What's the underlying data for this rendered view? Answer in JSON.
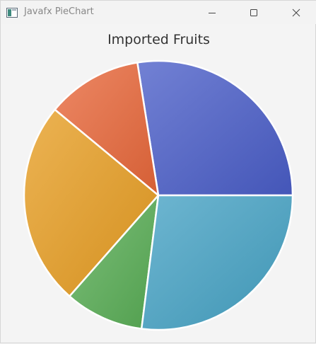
{
  "window": {
    "title": "Javafx PieChart",
    "app_icon": "java-window-icon",
    "controls": {
      "minimize_icon": "minimize-icon",
      "maximize_icon": "maximize-icon",
      "close_icon": "close-icon"
    }
  },
  "chart_data": {
    "type": "pie",
    "title": "Imported Fruits",
    "legend": "none",
    "slices": [
      {
        "value": 27.5,
        "color": "#4a5ec8"
      },
      {
        "value": 11.5,
        "color": "#e8673a"
      },
      {
        "value": 24.5,
        "color": "#e69d22"
      },
      {
        "value": 9.5,
        "color": "#58ad55"
      },
      {
        "value": 27.0,
        "color": "#45a2c4"
      }
    ]
  }
}
